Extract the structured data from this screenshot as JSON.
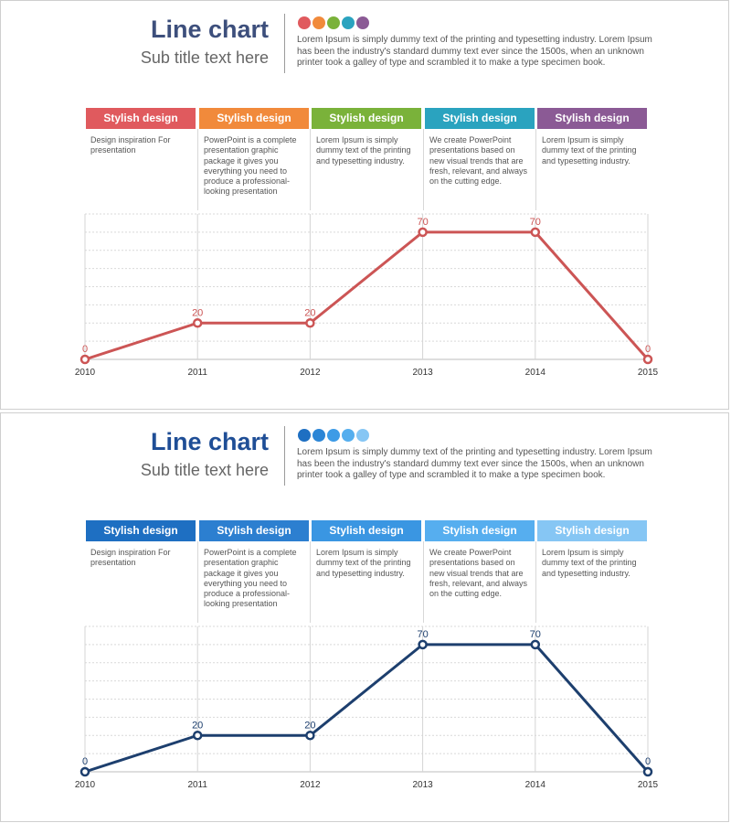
{
  "slides": [
    {
      "title": "Line chart",
      "subtitle": "Sub title text here",
      "description": "Lorem Ipsum  is simply dummy  text of the printing and typesetting industry. Lorem Ipsum has been the industry's standard dummy  text ever since the 1500s, when an unknown printer took a galley of type and scrambled it to make a type specimen book.",
      "title_color": "#3d4f7c",
      "line_color": "#cc5555",
      "dot_colors": [
        "#e05a5e",
        "#f18a3b",
        "#7ab23a",
        "#2aa3bf",
        "#8b5a95"
      ],
      "columns": [
        {
          "heading": "Stylish design",
          "color": "#e05a5e",
          "text": "Design inspiration For presentation"
        },
        {
          "heading": "Stylish design",
          "color": "#f18a3b",
          "text": "PowerPoint is a complete presentation graphic package it gives you everything you need to produce a professional-looking presentation"
        },
        {
          "heading": "Stylish design",
          "color": "#7ab23a",
          "text": "Lorem Ipsum is simply dummy text of the printing and typesetting industry."
        },
        {
          "heading": "Stylish design",
          "color": "#2aa3bf",
          "text": "We create PowerPoint presentations based on new visual trends that are fresh, relevant, and always on the cutting edge."
        },
        {
          "heading": "Stylish design",
          "color": "#8b5a95",
          "text": "Lorem Ipsum is simply dummy text of the printing and typesetting industry."
        }
      ]
    },
    {
      "title": "Line chart",
      "subtitle": "Sub title text here",
      "description": "Lorem Ipsum  is simply dummy  text of the printing and typesetting industry. Lorem Ipsum has been the industry's standard dummy  text ever since the 1500s, when an unknown printer took a galley of type and scrambled it to make a type specimen book.",
      "title_color": "#1f4e96",
      "line_color": "#1d3f6e",
      "dot_colors": [
        "#1e6fc2",
        "#2c86d6",
        "#3d9be6",
        "#55aeee",
        "#86c6f4"
      ],
      "columns": [
        {
          "heading": "Stylish design",
          "color": "#1e6fc2",
          "text": "Design inspiration For presentation"
        },
        {
          "heading": "Stylish design",
          "color": "#2c7fd0",
          "text": "PowerPoint is a complete presentation graphic package it gives you everything you need to produce a professional-looking presentation"
        },
        {
          "heading": "Stylish design",
          "color": "#3a96e2",
          "text": "Lorem Ipsum is simply dummy text of the printing and typesetting industry."
        },
        {
          "heading": "Stylish design",
          "color": "#56aeef",
          "text": "We create PowerPoint presentations based on new visual trends that are fresh, relevant, and always on the cutting edge."
        },
        {
          "heading": "Stylish design",
          "color": "#86c6f4",
          "text": "Lorem Ipsum is simply dummy text of the printing and typesetting industry."
        }
      ]
    }
  ],
  "chart_data": [
    {
      "type": "line",
      "title": "Line chart",
      "subtitle": "Sub title text here",
      "x": [
        "2010",
        "2011",
        "2012",
        "2013",
        "2014",
        "2015"
      ],
      "series": [
        {
          "values": [
            0,
            20,
            20,
            70,
            70,
            0
          ]
        }
      ],
      "ylim": [
        0,
        80
      ],
      "grid": true,
      "data_labels": true
    },
    {
      "type": "line",
      "title": "Line chart",
      "subtitle": "Sub title text here",
      "x": [
        "2010",
        "2011",
        "2012",
        "2013",
        "2014",
        "2015"
      ],
      "series": [
        {
          "values": [
            0,
            20,
            20,
            70,
            70,
            0
          ]
        }
      ],
      "ylim": [
        0,
        80
      ],
      "grid": true,
      "data_labels": true
    }
  ]
}
